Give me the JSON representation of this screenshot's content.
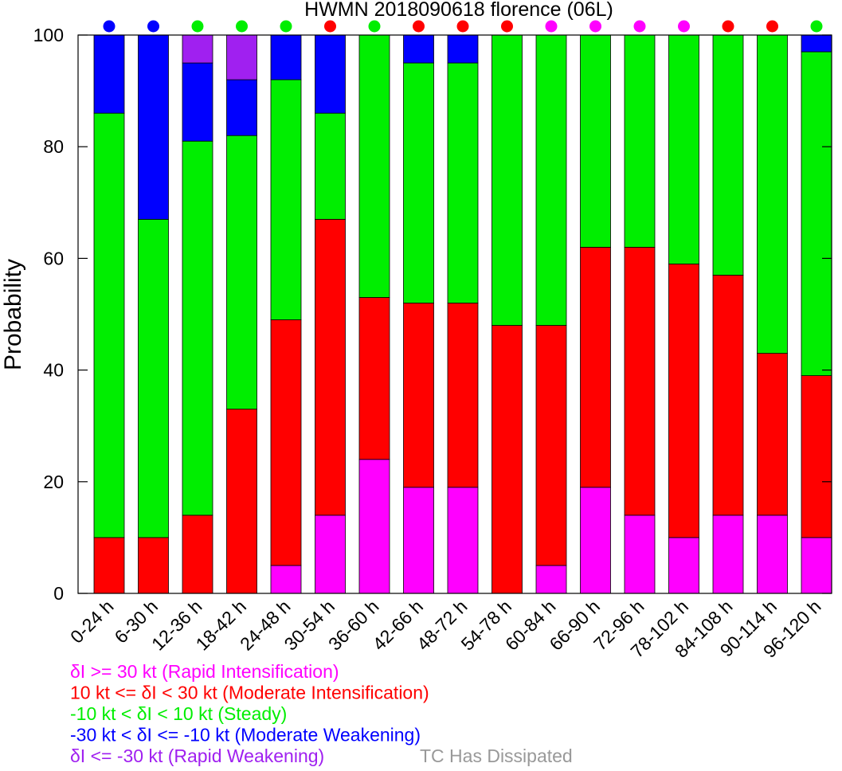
{
  "chart_data": {
    "type": "bar",
    "stacked": true,
    "title": "HWMN 2018090618 florence (06L)",
    "xlabel": "",
    "ylabel": "Probability",
    "ylim": [
      0,
      100
    ],
    "yticks": [
      0,
      20,
      40,
      60,
      80,
      100
    ],
    "grid": false,
    "categories": [
      "0-24 h",
      "6-30 h",
      "12-36 h",
      "18-42 h",
      "24-48 h",
      "30-54 h",
      "36-60 h",
      "42-66 h",
      "48-72 h",
      "54-78 h",
      "60-84 h",
      "66-90 h",
      "72-96 h",
      "78-102 h",
      "84-108 h",
      "90-114 h",
      "96-120 h"
    ],
    "series": [
      {
        "key": "RI",
        "color": "#ff00ff",
        "values": [
          0,
          0,
          0,
          0,
          5,
          14,
          24,
          19,
          19,
          0,
          5,
          19,
          14,
          10,
          14,
          14,
          10
        ]
      },
      {
        "key": "MI",
        "color": "#ff0000",
        "values": [
          10,
          10,
          14,
          33,
          44,
          53,
          29,
          33,
          33,
          48,
          43,
          43,
          48,
          49,
          43,
          29,
          29
        ]
      },
      {
        "key": "ST",
        "color": "#00ee00",
        "values": [
          76,
          57,
          67,
          49,
          43,
          19,
          47,
          43,
          43,
          52,
          52,
          38,
          38,
          41,
          43,
          57,
          58
        ]
      },
      {
        "key": "MW",
        "color": "#0000ff",
        "values": [
          14,
          33,
          14,
          10,
          8,
          14,
          0,
          5,
          5,
          0,
          0,
          0,
          0,
          0,
          0,
          0,
          3
        ]
      },
      {
        "key": "RW",
        "color": "#a020f0",
        "values": [
          0,
          0,
          5,
          8,
          0,
          0,
          0,
          0,
          0,
          0,
          0,
          0,
          0,
          0,
          0,
          0,
          0
        ]
      }
    ],
    "most_likely": [
      "MW",
      "MW",
      "ST",
      "ST",
      "ST",
      "MI",
      "ST",
      "MI",
      "MI",
      "MI",
      "RI",
      "RI",
      "RI",
      "RI",
      "MI",
      "MI",
      "ST"
    ],
    "legend": [
      {
        "key": "RI",
        "label": "δI >= 30 kt (Rapid Intensification)",
        "color": "#ff00ff"
      },
      {
        "key": "MI",
        "label": "10 kt <= δI < 30 kt (Moderate Intensification)",
        "color": "#ff0000"
      },
      {
        "key": "ST",
        "label": "-10 kt < δI < 10 kt (Steady)",
        "color": "#00ee00"
      },
      {
        "key": "MW",
        "label": "-30 kt < δI <= -10 kt (Moderate Weakening)",
        "color": "#0000ff"
      },
      {
        "key": "RW",
        "label": "δI <= -30 kt (Rapid Weakening)",
        "color": "#a020f0"
      }
    ],
    "dissipated_note": {
      "label": "TC Has Dissipated",
      "color": "#999999"
    }
  }
}
